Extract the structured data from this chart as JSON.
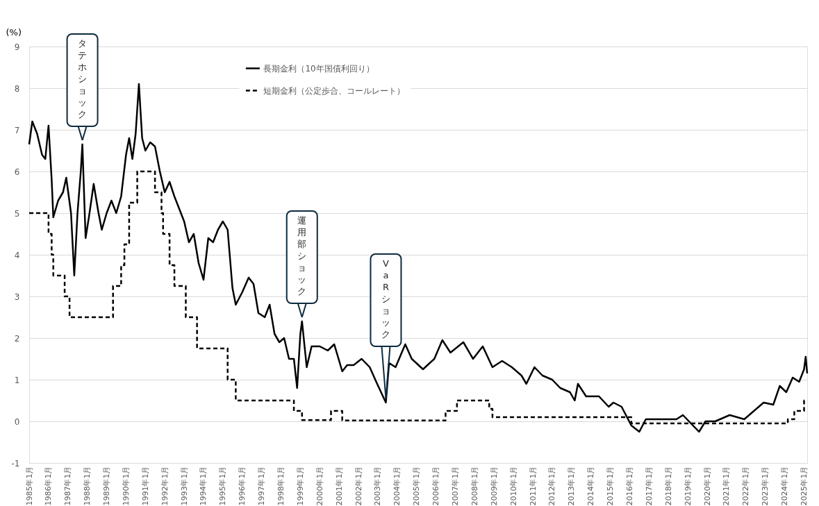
{
  "chart_data": {
    "type": "line",
    "ylabel": "(%)",
    "xlim": [
      "1985-01",
      "2025-03"
    ],
    "ylim": [
      -1,
      9
    ],
    "yticks": [
      -1,
      0,
      1,
      2,
      3,
      4,
      5,
      6,
      7,
      8,
      9
    ],
    "xticks": [
      {
        "value": "1985-01",
        "label": "1985年1月"
      },
      {
        "value": "1986-01",
        "label": "1986年1月"
      },
      {
        "value": "1987-01",
        "label": "1987年1月"
      },
      {
        "value": "1988-01",
        "label": "1988年1月"
      },
      {
        "value": "1989-01",
        "label": "1989年1月"
      },
      {
        "value": "1990-01",
        "label": "1990年1月"
      },
      {
        "value": "1991-01",
        "label": "1991年1月"
      },
      {
        "value": "1992-01",
        "label": "1992年1月"
      },
      {
        "value": "1993-01",
        "label": "1993年1月"
      },
      {
        "value": "1994-01",
        "label": "1994年1月"
      },
      {
        "value": "1995-01",
        "label": "1995年1月"
      },
      {
        "value": "1996-01",
        "label": "1996年1月"
      },
      {
        "value": "1997-01",
        "label": "1997年1月"
      },
      {
        "value": "1998-01",
        "label": "1998年1月"
      },
      {
        "value": "1999-01",
        "label": "1999年1月"
      },
      {
        "value": "2000-01",
        "label": "2000年1月"
      },
      {
        "value": "2001-01",
        "label": "2001年1月"
      },
      {
        "value": "2002-01",
        "label": "2002年1月"
      },
      {
        "value": "2003-01",
        "label": "2003年1月"
      },
      {
        "value": "2004-01",
        "label": "2004年1月"
      },
      {
        "value": "2005-01",
        "label": "2005年1月"
      },
      {
        "value": "2006-01",
        "label": "2006年1月"
      },
      {
        "value": "2007-01",
        "label": "2007年1月"
      },
      {
        "value": "2008-01",
        "label": "2008年1月"
      },
      {
        "value": "2009-01",
        "label": "2009年1月"
      },
      {
        "value": "2010-01",
        "label": "2010年1月"
      },
      {
        "value": "2011-01",
        "label": "2011年1月"
      },
      {
        "value": "2012-01",
        "label": "2012年1月"
      },
      {
        "value": "2013-01",
        "label": "2013年1月"
      },
      {
        "value": "2014-01",
        "label": "2014年1月"
      },
      {
        "value": "2015-01",
        "label": "2015年1月"
      },
      {
        "value": "2016-01",
        "label": "2016年1月"
      },
      {
        "value": "2017-01",
        "label": "2017年1月"
      },
      {
        "value": "2018-01",
        "label": "2018年1月"
      },
      {
        "value": "2019-01",
        "label": "2019年1月"
      },
      {
        "value": "2020-01",
        "label": "2020年1月"
      },
      {
        "value": "2021-01",
        "label": "2021年1月"
      },
      {
        "value": "2022-01",
        "label": "2022年1月"
      },
      {
        "value": "2023-01",
        "label": "2023年1月"
      },
      {
        "value": "2024-01",
        "label": "2024年1月"
      },
      {
        "value": "2025-01",
        "label": "2025年1月"
      }
    ],
    "grid": "y",
    "legend": "top",
    "marker": "none",
    "series": [
      {
        "name": "長期金利（10年国債利回り）",
        "color": "#000000",
        "line_style": "solid",
        "x": [
          "1985-01",
          "1985-03",
          "1985-06",
          "1985-09",
          "1985-11",
          "1986-01",
          "1986-03",
          "1986-04",
          "1986-07",
          "1986-10",
          "1986-12",
          "1987-03",
          "1987-05",
          "1987-07",
          "1987-09",
          "1987-10",
          "1987-12",
          "1988-02",
          "1988-05",
          "1988-08",
          "1988-10",
          "1989-01",
          "1989-04",
          "1989-07",
          "1989-10",
          "1990-01",
          "1990-03",
          "1990-05",
          "1990-07",
          "1990-09",
          "1990-11",
          "1991-01",
          "1991-04",
          "1991-07",
          "1991-10",
          "1992-01",
          "1992-04",
          "1992-07",
          "1992-10",
          "1993-01",
          "1993-04",
          "1993-07",
          "1993-10",
          "1994-01",
          "1994-04",
          "1994-07",
          "1994-10",
          "1995-01",
          "1995-04",
          "1995-07",
          "1995-09",
          "1996-01",
          "1996-05",
          "1996-08",
          "1996-11",
          "1997-03",
          "1997-06",
          "1997-09",
          "1997-12",
          "1998-03",
          "1998-06",
          "1998-09",
          "1998-11",
          "1999-01",
          "1999-02",
          "1999-05",
          "1999-08",
          "2000-01",
          "2000-06",
          "2000-10",
          "2001-03",
          "2001-06",
          "2001-10",
          "2002-03",
          "2002-08",
          "2002-12",
          "2003-06",
          "2003-08",
          "2003-12",
          "2004-06",
          "2004-10",
          "2005-05",
          "2005-12",
          "2006-05",
          "2006-10",
          "2007-06",
          "2007-12",
          "2008-06",
          "2008-12",
          "2009-06",
          "2009-12",
          "2010-06",
          "2010-09",
          "2011-02",
          "2011-07",
          "2012-01",
          "2012-06",
          "2012-12",
          "2013-03",
          "2013-05",
          "2013-10",
          "2014-06",
          "2014-12",
          "2015-03",
          "2015-08",
          "2016-02",
          "2016-07",
          "2016-11",
          "2017-06",
          "2018-06",
          "2018-10",
          "2019-03",
          "2019-08",
          "2019-12",
          "2020-06",
          "2021-03",
          "2021-12",
          "2022-06",
          "2022-12",
          "2023-06",
          "2023-10",
          "2024-02",
          "2024-06",
          "2024-10",
          "2025-01",
          "2025-02",
          "2025-03"
        ],
        "values": [
          6.65,
          7.2,
          6.9,
          6.4,
          6.3,
          7.1,
          5.8,
          4.9,
          5.3,
          5.5,
          5.85,
          5.0,
          3.5,
          5.0,
          6.0,
          6.65,
          4.4,
          4.9,
          5.7,
          5.0,
          4.6,
          5.0,
          5.3,
          5.0,
          5.4,
          6.4,
          6.8,
          6.3,
          6.9,
          8.1,
          6.8,
          6.5,
          6.7,
          6.6,
          6.0,
          5.5,
          5.75,
          5.4,
          5.1,
          4.8,
          4.3,
          4.5,
          3.8,
          3.4,
          4.4,
          4.3,
          4.6,
          4.8,
          4.6,
          3.2,
          2.8,
          3.1,
          3.45,
          3.3,
          2.6,
          2.5,
          2.8,
          2.1,
          1.9,
          2.0,
          1.5,
          1.5,
          0.8,
          2.1,
          2.4,
          1.3,
          1.8,
          1.8,
          1.7,
          1.85,
          1.2,
          1.35,
          1.35,
          1.5,
          1.3,
          0.95,
          0.45,
          1.4,
          1.3,
          1.85,
          1.5,
          1.25,
          1.5,
          1.95,
          1.65,
          1.9,
          1.5,
          1.8,
          1.3,
          1.45,
          1.3,
          1.1,
          0.9,
          1.3,
          1.1,
          1.0,
          0.8,
          0.7,
          0.5,
          0.9,
          0.6,
          0.6,
          0.35,
          0.45,
          0.35,
          -0.1,
          -0.25,
          0.05,
          0.05,
          0.05,
          0.15,
          -0.05,
          -0.25,
          0.0,
          0.0,
          0.15,
          0.05,
          0.25,
          0.45,
          0.4,
          0.85,
          0.7,
          1.05,
          0.95,
          1.25,
          1.55,
          1.15
        ]
      },
      {
        "name": "短期金利（公定歩合、コールレート）",
        "color": "#000000",
        "type": "step",
        "line_style": "dashed",
        "x": [
          "1985-01",
          "1986-01",
          "1986-03",
          "1986-04",
          "1986-11",
          "1987-02",
          "1989-05",
          "1989-10",
          "1989-12",
          "1990-03",
          "1990-08",
          "1991-07",
          "1991-11",
          "1991-12",
          "1992-04",
          "1992-07",
          "1993-02",
          "1993-09",
          "1995-04",
          "1995-09",
          "1998-09",
          "1999-02",
          "2000-08",
          "2001-03",
          "2006-07",
          "2007-02",
          "2008-10",
          "2008-12",
          "2016-02",
          "2024-03",
          "2024-07",
          "2025-01",
          "2025-03"
        ],
        "values": [
          5.0,
          4.5,
          4.0,
          3.5,
          3.0,
          2.5,
          3.25,
          3.75,
          4.25,
          5.25,
          6.0,
          5.5,
          5.0,
          4.5,
          3.75,
          3.25,
          2.5,
          1.75,
          1.0,
          0.5,
          0.25,
          0.03,
          0.25,
          0.02,
          0.25,
          0.5,
          0.3,
          0.1,
          -0.05,
          0.05,
          0.25,
          0.5,
          0.5
        ]
      }
    ],
    "annotations": [
      {
        "text": "タテホショック",
        "x": "1987-10",
        "y": 6.65
      },
      {
        "text": "運用部ショック",
        "x": "1999-02",
        "y": 2.4
      },
      {
        "text": "VaRショック",
        "x": "2003-06",
        "y": 0.45
      }
    ]
  }
}
